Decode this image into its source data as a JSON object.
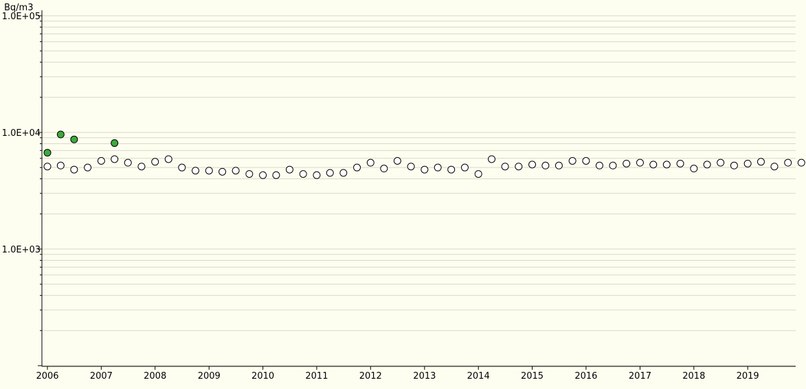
{
  "chart_data": {
    "type": "scatter",
    "yscale": "log",
    "ylabel": "Bq/m3",
    "ylim": [
      100,
      100000
    ],
    "xlim": [
      "2006-01-01",
      "2019-12-31"
    ],
    "ytick_labels": [
      "1.0E+05",
      "1.0E+04",
      "1.0E+03"
    ],
    "xtick_labels": [
      "2006",
      "2007",
      "2008",
      "2009",
      "2010",
      "2011",
      "2012",
      "2013",
      "2014",
      "2015",
      "2016",
      "2017",
      "2018",
      "2019"
    ],
    "grid": true,
    "colors": {
      "background": "#fefef0",
      "grid": "#d8d8c8",
      "open_marker_fill": "#ffffff",
      "filled_marker": "#3daa3d",
      "marker_edge": "#000000"
    },
    "series": [
      {
        "marker": "filled",
        "x": [
          "2006-01-01",
          "2006-04-01",
          "2006-07-01",
          "2007-04-01"
        ],
        "y": [
          6700,
          9600,
          8700,
          8100
        ]
      },
      {
        "marker": "open",
        "x": [
          "2006-01-01",
          "2006-04-01",
          "2006-07-01",
          "2006-10-01",
          "2007-01-01",
          "2007-04-01",
          "2007-07-01",
          "2007-10-01",
          "2008-01-01",
          "2008-04-01",
          "2008-07-01",
          "2008-10-01",
          "2009-01-01",
          "2009-04-01",
          "2009-07-01",
          "2009-10-01",
          "2010-01-01",
          "2010-04-01",
          "2010-07-01",
          "2010-10-01",
          "2011-01-01",
          "2011-04-01",
          "2011-07-01",
          "2011-10-01",
          "2012-01-01",
          "2012-04-01",
          "2012-07-01",
          "2012-10-01",
          "2013-01-01",
          "2013-04-01",
          "2013-07-01",
          "2013-10-01",
          "2014-01-01",
          "2014-04-01",
          "2014-07-01",
          "2014-10-01",
          "2015-01-01",
          "2015-04-01",
          "2015-07-01",
          "2015-10-01",
          "2016-01-01",
          "2016-04-01",
          "2016-07-01",
          "2016-10-01",
          "2017-01-01",
          "2017-04-01",
          "2017-07-01",
          "2017-10-01",
          "2018-01-01",
          "2018-04-01",
          "2018-07-01",
          "2018-10-01",
          "2019-01-01",
          "2019-04-01",
          "2019-07-01",
          "2019-10-01",
          "2019-12-31"
        ],
        "y": [
          5100,
          5200,
          4800,
          5000,
          5700,
          5900,
          5500,
          5100,
          5600,
          5900,
          5000,
          4700,
          4700,
          4600,
          4700,
          4400,
          4300,
          4300,
          4800,
          4400,
          4300,
          4500,
          4500,
          5000,
          5500,
          4900,
          5700,
          5100,
          4800,
          5000,
          4800,
          5000,
          4400,
          5900,
          5100,
          5100,
          5300,
          5200,
          5200,
          5700,
          5700,
          5200,
          5200,
          5400,
          5500,
          5300,
          5300,
          5400,
          4900,
          5300,
          5500,
          5200,
          5400,
          5600,
          5100,
          5500,
          5500
        ]
      }
    ]
  }
}
